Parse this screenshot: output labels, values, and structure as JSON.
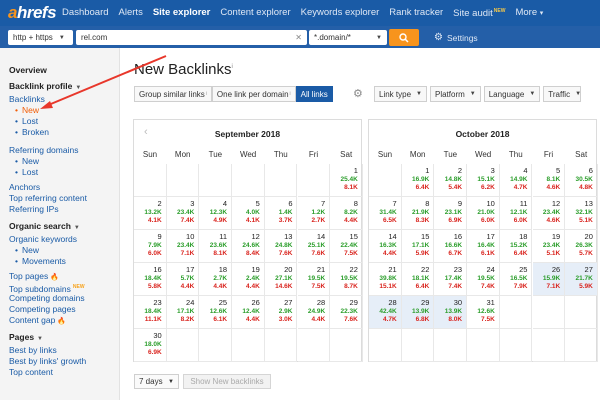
{
  "nav": {
    "logo_a": "a",
    "logo_rest": "hrefs",
    "items": [
      "Dashboard",
      "Alerts",
      "Site explorer",
      "Content explorer",
      "Keywords explorer",
      "Rank tracker",
      "Site audit",
      "More"
    ],
    "site_audit_badge": "NEW",
    "more_caret": "▾"
  },
  "search": {
    "protocol": "http + https",
    "url": "rel.com",
    "clear": "✕",
    "mode": "*.domain/*",
    "go_icon": "search-icon",
    "settings": "Settings"
  },
  "sidebar": {
    "overview": "Overview",
    "backlink_profile": "Backlink profile",
    "backlinks": "Backlinks",
    "backlink_subs": [
      "New",
      "Lost",
      "Broken"
    ],
    "referring_domains": "Referring domains",
    "ref_subs": [
      "New",
      "Lost"
    ],
    "anchors": "Anchors",
    "top_referring": "Top referring content",
    "referring_ips": "Referring IPs",
    "organic_search": "Organic search",
    "organic_keywords": "Organic keywords",
    "organic_subs": [
      "New",
      "Movements"
    ],
    "top_pages": "Top pages",
    "top_subdomains": "Top subdomains",
    "top_subdomains_badge": "NEW",
    "competing_domains": "Competing domains",
    "competing_pages": "Competing pages",
    "content_gap": "Content gap",
    "pages": "Pages",
    "best_by_links": "Best by links",
    "best_by_growth": "Best by links' growth",
    "top_content": "Top content"
  },
  "main": {
    "title": "New Backlinks",
    "title_sup": "i",
    "group_similar": "Group similar links",
    "one_per_domain": "One link per domain",
    "all_links": "All links",
    "filters": [
      "Link type",
      "Platform",
      "Language",
      "Traffic"
    ],
    "info": "i",
    "days": "7 days",
    "show_btn": "Show New backlinks"
  },
  "weekdays": [
    "Sun",
    "Mon",
    "Tue",
    "Wed",
    "Thu",
    "Fri",
    "Sat"
  ],
  "calendars": [
    {
      "month": "September 2018",
      "nav": "‹",
      "offset": 6,
      "days": [
        [
          "25.4K",
          "8.1K"
        ],
        [
          "13.2K",
          "4.1K"
        ],
        [
          "23.4K",
          "7.4K"
        ],
        [
          "12.3K",
          "4.9K"
        ],
        [
          "4.0K",
          "4.1K"
        ],
        [
          "1.4K",
          "3.7K"
        ],
        [
          "1.2K",
          "2.7K"
        ],
        [
          "8.2K",
          "4.4K"
        ],
        [
          "7.9K",
          "6.0K"
        ],
        [
          "23.4K",
          "7.1K"
        ],
        [
          "23.6K",
          "8.1K"
        ],
        [
          "24.6K",
          "8.4K"
        ],
        [
          "24.8K",
          "7.6K"
        ],
        [
          "25.1K",
          "7.6K"
        ],
        [
          "22.4K",
          "7.5K"
        ],
        [
          "18.4K",
          "5.8K"
        ],
        [
          "5.7K",
          "4.4K"
        ],
        [
          "2.7K",
          "4.4K"
        ],
        [
          "2.4K",
          "4.4K"
        ],
        [
          "27.1K",
          "14.6K"
        ],
        [
          "19.5K",
          "7.5K"
        ],
        [
          "19.5K",
          "8.7K"
        ],
        [
          "18.4K",
          "11.1K"
        ],
        [
          "17.1K",
          "8.2K"
        ],
        [
          "12.6K",
          "6.1K"
        ],
        [
          "12.4K",
          "4.4K"
        ],
        [
          "2.9K",
          "3.0K"
        ],
        [
          "24.9K",
          "4.4K"
        ],
        [
          "22.3K",
          "7.6K"
        ],
        [
          "18.0K",
          "6.9K"
        ]
      ]
    },
    {
      "month": "October 2018",
      "nav": "›",
      "offset": 1,
      "days": [
        [
          "16.9K",
          "6.4K"
        ],
        [
          "14.8K",
          "5.4K"
        ],
        [
          "15.1K",
          "6.2K"
        ],
        [
          "14.9K",
          "4.7K"
        ],
        [
          "8.1K",
          "4.6K"
        ],
        [
          "30.5K",
          "4.8K"
        ],
        [
          "31.4K",
          "6.5K"
        ],
        [
          "21.9K",
          "8.3K"
        ],
        [
          "23.1K",
          "6.9K"
        ],
        [
          "21.0K",
          "6.0K"
        ],
        [
          "12.1K",
          "6.0K"
        ],
        [
          "23.4K",
          "4.6K"
        ],
        [
          "32.1K",
          "5.1K"
        ],
        [
          "16.3K",
          "4.4K"
        ],
        [
          "17.1K",
          "5.9K"
        ],
        [
          "16.6K",
          "6.7K"
        ],
        [
          "16.4K",
          "6.1K"
        ],
        [
          "15.2K",
          "6.4K"
        ],
        [
          "23.4K",
          "5.1K"
        ],
        [
          "26.3K",
          "5.7K"
        ],
        [
          "39.8K",
          "15.1K"
        ],
        [
          "18.1K",
          "6.4K"
        ],
        [
          "17.4K",
          "7.4K"
        ],
        [
          "19.5K",
          "7.4K"
        ],
        [
          "16.5K",
          "7.9K"
        ],
        [
          "15.9K",
          "7.1K"
        ],
        [
          "21.7K",
          "5.9K"
        ],
        [
          "42.4K",
          "4.7K"
        ],
        [
          "13.9K",
          "6.8K"
        ],
        [
          "13.9K",
          "8.0K"
        ],
        [
          "12.6K",
          "7.5K"
        ]
      ],
      "highlight": [
        26,
        27,
        28,
        29,
        30
      ]
    }
  ]
}
